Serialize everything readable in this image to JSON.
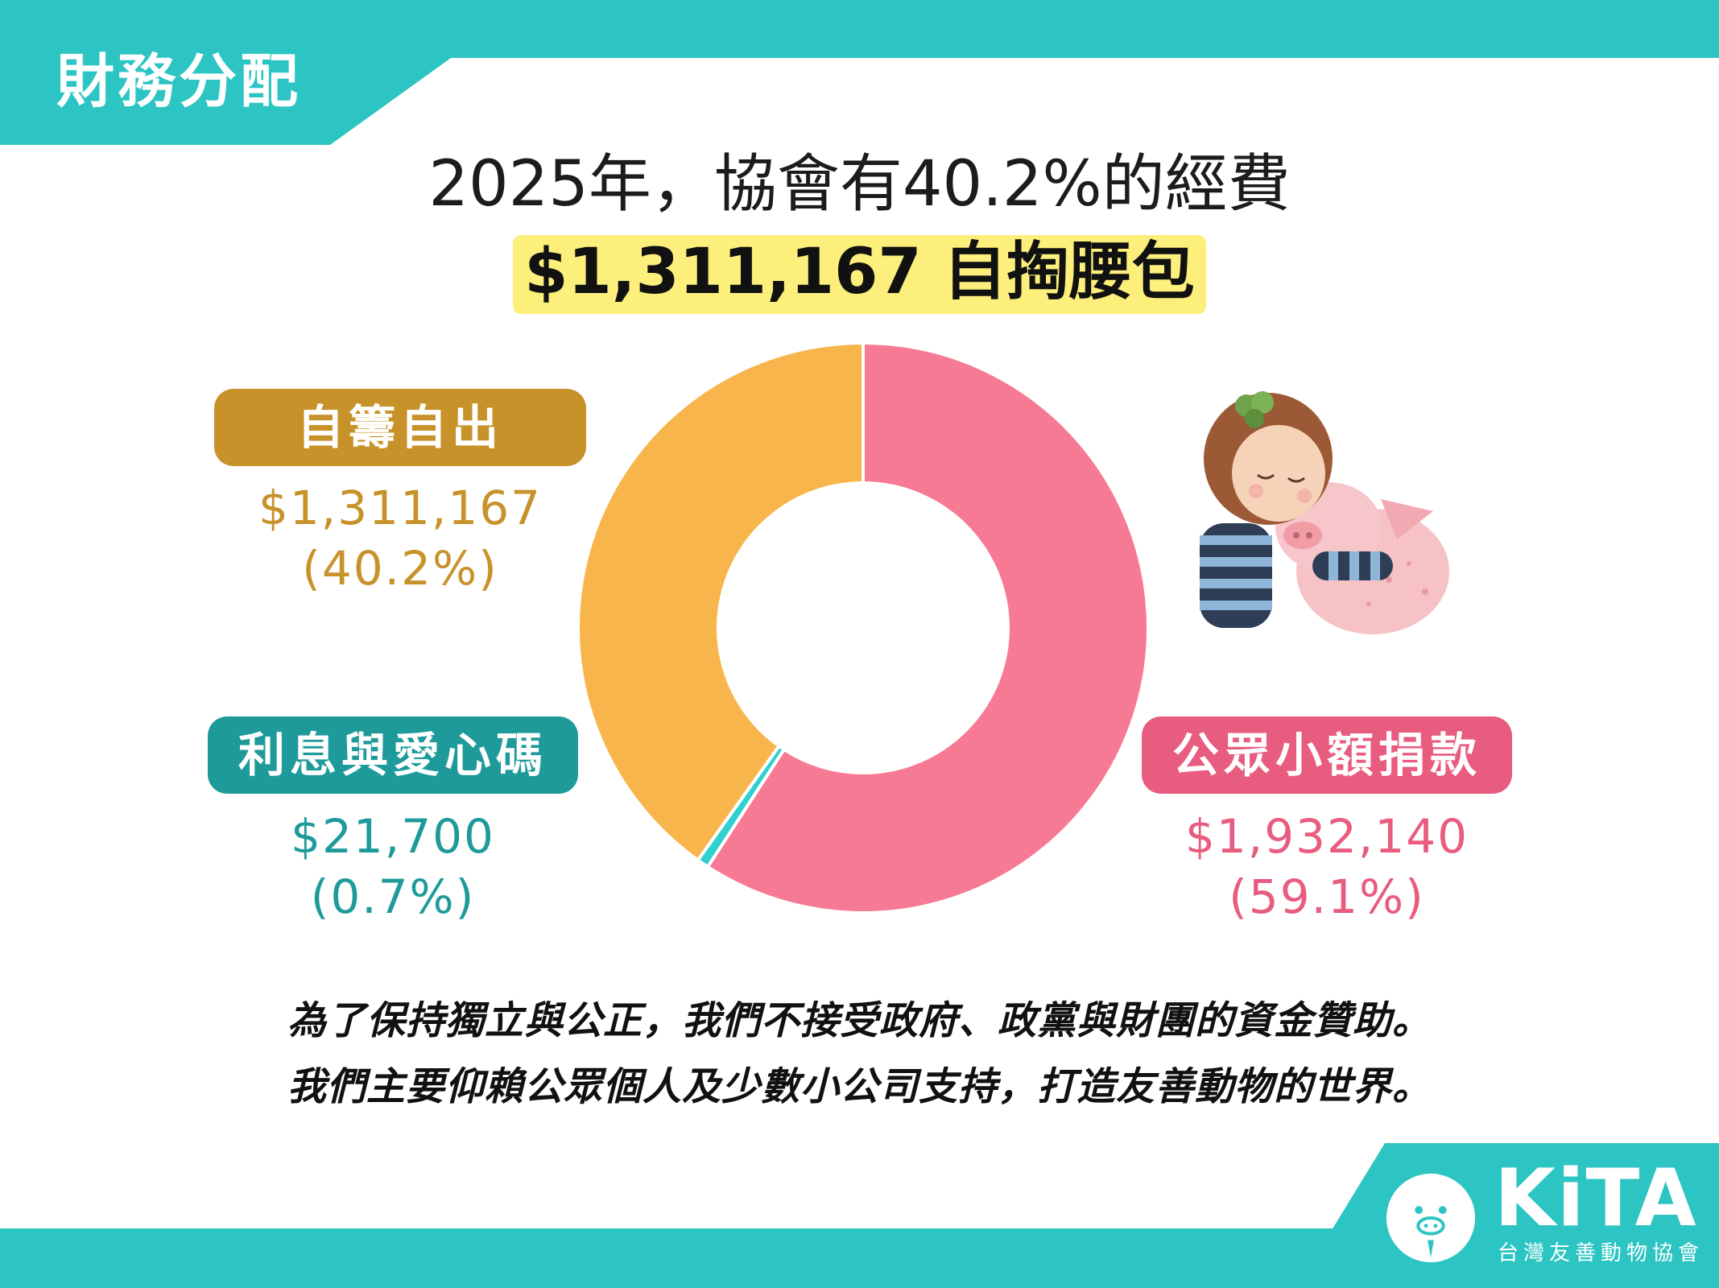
{
  "header": {
    "section_title": "財務分配"
  },
  "headline": {
    "line1": "2025年，協會有40.2%的經費",
    "line2": "$1,311,167 自掏腰包"
  },
  "colors": {
    "teal": "#2dc5c3",
    "highlight": "#fcef7c",
    "self_fund_label": "#c8922a",
    "self_fund_slice": "#f8b54c",
    "interest_label": "#1f9a9a",
    "interest_slice": "#2fd0cf",
    "donation_label": "#e85c7f",
    "donation_slice": "#f67a93"
  },
  "chart_data": {
    "type": "pie",
    "style": "donut",
    "slices": [
      {
        "name": "公眾小額捐款",
        "value": 1932140,
        "amount": "$1,932,140",
        "percent": "(59.1%)",
        "color": "#f67a93",
        "label_color": "#e85c7f"
      },
      {
        "name": "利息與愛心碼",
        "value": 21700,
        "amount": "$21,700",
        "percent": "(0.7%)",
        "color": "#2fd0cf",
        "label_color": "#1f9a9a"
      },
      {
        "name": "自籌自出",
        "value": 1311167,
        "amount": "$1,311,167",
        "percent": "(40.2%)",
        "color": "#f8b54c",
        "label_color": "#c8922a"
      }
    ]
  },
  "footer": {
    "line1": "為了保持獨立與公正，我們不接受政府、政黨與財團的資金贊助。",
    "line2": "我們主要仰賴公眾個人及少數小公司支持，打造友善動物的世界。"
  },
  "logo": {
    "word": "KiTA",
    "subtitle": "台灣友善動物協會"
  },
  "illustration": {
    "icon": "girl-hugging-pig-illustration"
  }
}
